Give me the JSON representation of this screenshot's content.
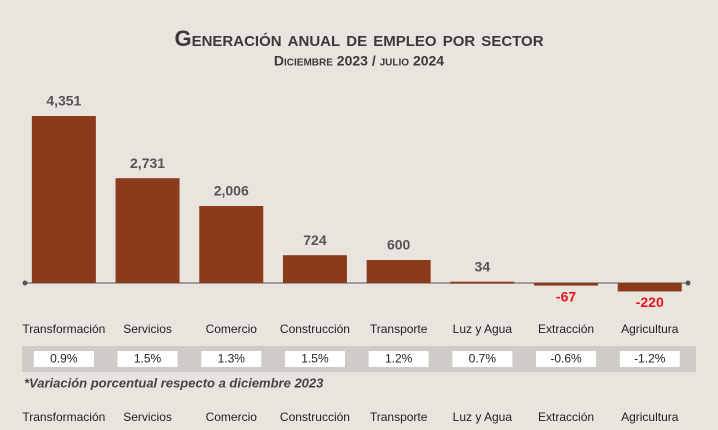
{
  "chart_data": {
    "type": "bar",
    "title": "Generación anual de empleo por sector",
    "subtitle": "Diciembre 2023 / julio 2024",
    "categories": [
      "Transformación",
      "Servicios",
      "Comercio",
      "Construcción",
      "Transporte",
      "Luz y Agua",
      "Extracción",
      "Agricultura"
    ],
    "values": [
      4351,
      2731,
      2006,
      724,
      600,
      34,
      -67,
      -220
    ],
    "value_labels": [
      "4,351",
      "2,731",
      "2,006",
      "724",
      "600",
      "34",
      "-67",
      "-220"
    ],
    "color": "#8b3b1b",
    "negative_label_color": "#e8141b",
    "variation": {
      "values": [
        0.9,
        1.5,
        1.3,
        1.5,
        1.2,
        0.7,
        -0.6,
        -1.2
      ],
      "value_labels": [
        "0.9%",
        "1.5%",
        "1.3%",
        "1.5%",
        "1.2%",
        "0.7%",
        "-0.6%",
        "-1.2%"
      ]
    },
    "note": "*Variación porcentual respecto a diciembre 2023"
  }
}
